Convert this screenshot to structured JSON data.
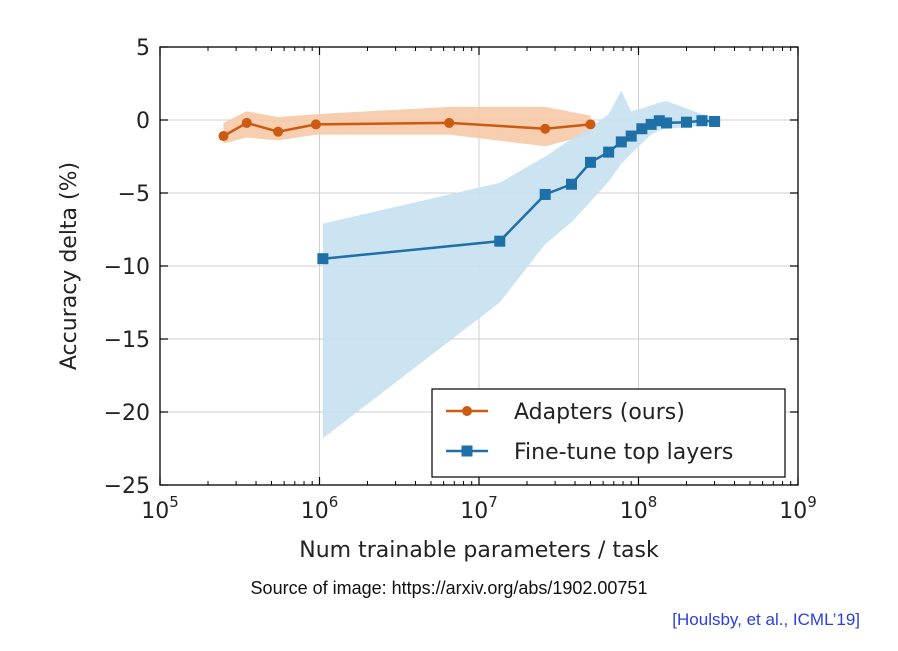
{
  "chart_data": {
    "type": "line",
    "xlabel": "Num trainable parameters / task",
    "ylabel": "Accuracy delta (%)",
    "xscale": "log",
    "xlim": [
      100000,
      1000000000
    ],
    "ylim": [
      -25,
      5
    ],
    "x_ticks": [
      {
        "base": "10",
        "exp": "5"
      },
      {
        "base": "10",
        "exp": "6"
      },
      {
        "base": "10",
        "exp": "7"
      },
      {
        "base": "10",
        "exp": "8"
      },
      {
        "base": "10",
        "exp": "9"
      }
    ],
    "y_ticks": [
      "5",
      "0",
      "−5",
      "−10",
      "−15",
      "−20",
      "−25"
    ],
    "grid": true,
    "legend_position": "lower-right",
    "series": [
      {
        "name": "Adapters (ours)",
        "color": "#cc5a12",
        "band_color": "#f6c9a6",
        "marker": "circle",
        "x": [
          250000,
          350000,
          550000,
          950000,
          6500000,
          26000000,
          50000000
        ],
        "y": [
          -1.1,
          -0.2,
          -0.8,
          -0.3,
          -0.2,
          -0.6,
          -0.3
        ],
        "band_x": [
          250000,
          350000,
          550000,
          950000,
          6500000,
          26000000,
          50000000
        ],
        "band_upper": [
          -0.2,
          0.6,
          0.2,
          0.4,
          0.9,
          0.9,
          0.3
        ],
        "band_lower": [
          -1.6,
          -1.2,
          -1.4,
          -1.0,
          -1.0,
          -1.8,
          -1.0
        ]
      },
      {
        "name": "Fine-tune top layers",
        "color": "#1f6fa8",
        "band_color": "#c7e1f0",
        "marker": "square",
        "x": [
          1050000,
          13500000,
          26000000,
          38000000,
          50000000,
          65000000,
          78000000,
          90000000,
          105000000,
          120000000,
          135000000,
          150000000,
          200000000,
          250000000,
          300000000
        ],
        "y": [
          -9.5,
          -8.3,
          -5.1,
          -4.4,
          -2.9,
          -2.2,
          -1.5,
          -1.1,
          -0.6,
          -0.3,
          -0.05,
          -0.2,
          -0.15,
          -0.05,
          -0.1
        ],
        "band_x": [
          1050000,
          13500000,
          26000000,
          38000000,
          50000000,
          65000000,
          78000000,
          90000000,
          105000000,
          120000000,
          135000000,
          150000000,
          200000000,
          250000000,
          300000000
        ],
        "band_upper": [
          -7.1,
          -4.3,
          -2.5,
          -1.3,
          -0.5,
          0.4,
          2.0,
          0.6,
          0.8,
          1.0,
          1.2,
          1.3,
          0.8,
          0.4,
          0.2
        ],
        "band_lower": [
          -21.8,
          -12.5,
          -8.5,
          -7.0,
          -5.6,
          -4.2,
          -3.0,
          -2.3,
          -1.6,
          -1.0,
          -0.7,
          -0.6,
          -0.5,
          -0.4,
          -0.3
        ]
      }
    ]
  },
  "source_text": "Source of image: https://arxiv.org/abs/1902.00751",
  "citation": "[Houlsby, et al., ICML’19]"
}
